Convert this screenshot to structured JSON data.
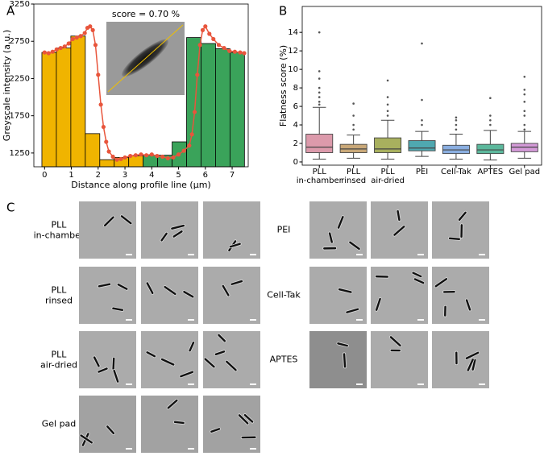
{
  "chart_data": [
    {
      "type": "histogram",
      "panel_label": "A",
      "annotation": "score = 0.70 %",
      "x_label": "Distance along profile line (μm)",
      "y_label": "Greyscale intensity (a.u.)",
      "bins": [
        -0.1,
        0.44,
        0.98,
        1.52,
        2.06,
        2.6,
        3.14,
        3.68,
        4.22,
        4.76,
        5.3,
        5.84,
        6.38,
        6.92,
        7.46
      ],
      "values": [
        2600,
        2660,
        2820,
        1510,
        1160,
        1190,
        1210,
        1220,
        1220,
        1400,
        2800,
        2720,
        2650,
        2600
      ],
      "colors": [
        "#f0b400",
        "#f0b400",
        "#f0b400",
        "#f0b400",
        "#f0b400",
        "#f0b400",
        "#f0b400",
        "#3aa35a",
        "#3aa35a",
        "#3aa35a",
        "#3aa35a",
        "#3aa35a",
        "#3aa35a",
        "#3aa35a"
      ],
      "line": {
        "color": "#e8553c",
        "x": [
          0,
          0.15,
          0.3,
          0.45,
          0.6,
          0.75,
          0.9,
          1.05,
          1.2,
          1.35,
          1.5,
          1.6,
          1.7,
          1.8,
          1.9,
          2.0,
          2.1,
          2.2,
          2.3,
          2.4,
          2.55,
          2.7,
          2.85,
          3.0,
          3.2,
          3.4,
          3.6,
          3.8,
          4.0,
          4.2,
          4.4,
          4.6,
          4.8,
          5.0,
          5.2,
          5.4,
          5.5,
          5.6,
          5.7,
          5.8,
          5.9,
          6.0,
          6.15,
          6.3,
          6.5,
          6.7,
          6.9,
          7.1,
          7.3,
          7.45
        ],
        "values": [
          2600,
          2590,
          2610,
          2640,
          2660,
          2680,
          2720,
          2780,
          2800,
          2820,
          2860,
          2930,
          2950,
          2900,
          2700,
          2300,
          1900,
          1600,
          1400,
          1270,
          1200,
          1160,
          1170,
          1190,
          1210,
          1220,
          1230,
          1220,
          1230,
          1210,
          1200,
          1180,
          1190,
          1230,
          1280,
          1350,
          1500,
          1800,
          2300,
          2700,
          2900,
          2950,
          2850,
          2780,
          2700,
          2660,
          2620,
          2610,
          2600,
          2590
        ]
      },
      "xlim": [
        -0.4,
        7.6
      ],
      "ylim": [
        1065,
        3250
      ],
      "xticks": [
        0,
        1,
        2,
        3,
        4,
        5,
        6,
        7
      ],
      "yticks": [
        1250,
        1750,
        2250,
        2750,
        3250
      ]
    },
    {
      "type": "box",
      "panel_label": "B",
      "y_label": "Flatness score (%)",
      "categories": [
        [
          "PLL",
          "in-chamber"
        ],
        [
          "PLL",
          "rinsed"
        ],
        [
          "PLL",
          "air-dried"
        ],
        [
          "PEI"
        ],
        [
          "Cell-Tak"
        ],
        [
          "APTES"
        ],
        [
          "Gel pad"
        ]
      ],
      "boxes": [
        {
          "color": "#dc9aab",
          "min": 0.3,
          "q1": 1.0,
          "median": 1.6,
          "q3": 3.0,
          "max": 5.9,
          "fliers": [
            6.2,
            6.5,
            7.0,
            7.5,
            8.0,
            9.0,
            9.8,
            14.0
          ]
        },
        {
          "color": "#c9a878",
          "min": 0.4,
          "q1": 1.0,
          "median": 1.4,
          "q3": 1.9,
          "max": 2.9,
          "fliers": [
            3.5,
            4.0,
            5.0,
            6.3
          ]
        },
        {
          "color": "#a8b05e",
          "min": 0.3,
          "q1": 1.0,
          "median": 1.4,
          "q3": 2.6,
          "max": 4.5,
          "fliers": [
            5.0,
            5.5,
            6.2,
            7.0,
            8.8
          ]
        },
        {
          "color": "#4fa8b0",
          "min": 0.6,
          "q1": 1.2,
          "median": 1.5,
          "q3": 2.3,
          "max": 3.3,
          "fliers": [
            4.0,
            4.5,
            6.7,
            12.8
          ]
        },
        {
          "color": "#8aaee0",
          "min": 0.3,
          "q1": 0.9,
          "median": 1.3,
          "q3": 1.8,
          "max": 3.0,
          "fliers": [
            3.5,
            4.0,
            4.5,
            4.8
          ]
        },
        {
          "color": "#5cb89c",
          "min": 0.2,
          "q1": 0.9,
          "median": 1.3,
          "q3": 1.9,
          "max": 3.4,
          "fliers": [
            4.0,
            4.5,
            5.0,
            6.9
          ]
        },
        {
          "color": "#d49ad8",
          "min": 0.4,
          "q1": 1.1,
          "median": 1.6,
          "q3": 2.0,
          "max": 3.3,
          "fliers": [
            3.5,
            4.0,
            5.0,
            5.5,
            6.5,
            7.3,
            7.8,
            9.2
          ]
        }
      ],
      "ylim": [
        -0.35,
        16.8
      ],
      "yticks": [
        0,
        2,
        4,
        6,
        8,
        10,
        12,
        14
      ]
    }
  ],
  "panel_c": {
    "label": "C",
    "conditions": [
      {
        "lines": [
          "PLL",
          "in-chamber"
        ]
      },
      {
        "lines": [
          "PLL",
          "rinsed"
        ]
      },
      {
        "lines": [
          "PLL",
          "air-dried"
        ]
      },
      {
        "lines": [
          "Gel pad"
        ]
      },
      {
        "lines": [
          "PEI"
        ]
      },
      {
        "lines": [
          "Cell-Tak"
        ]
      },
      {
        "lines": [
          "APTES"
        ]
      }
    ]
  }
}
